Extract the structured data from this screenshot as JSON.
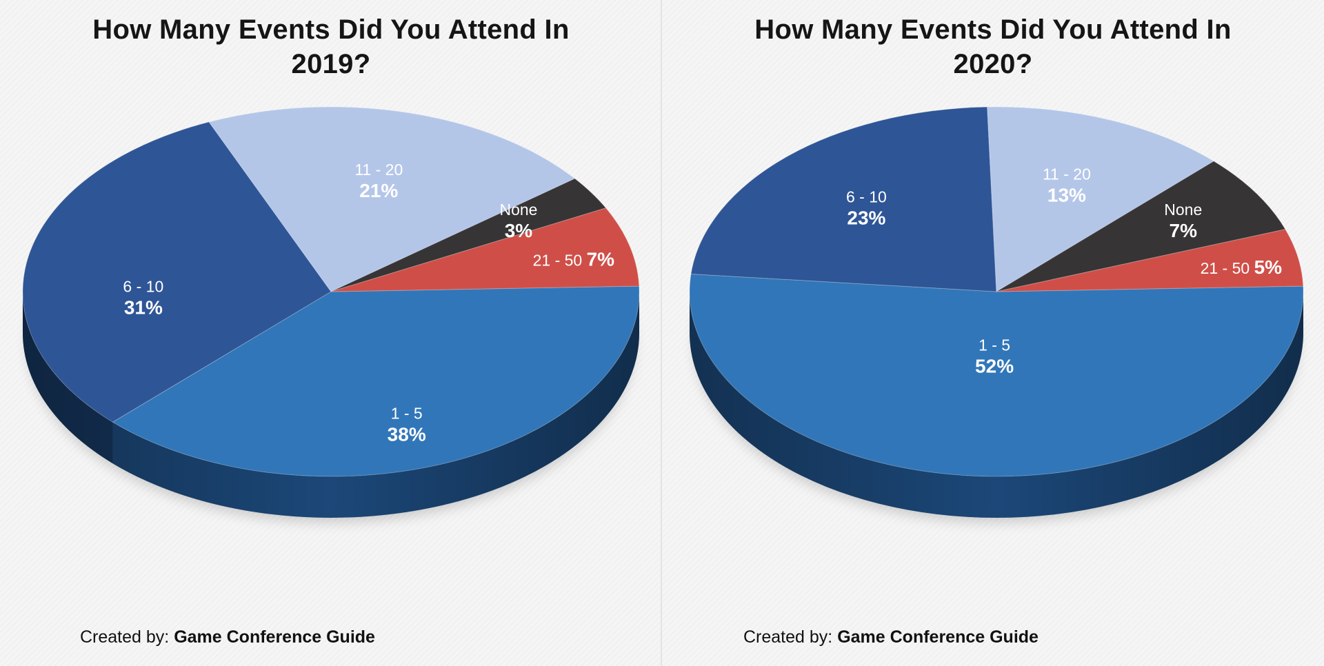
{
  "chart_data": [
    {
      "type": "pie",
      "title_line1": "How Many Events Did You Attend In",
      "title_line2": "2019?",
      "categories": [
        "1 - 5",
        "6 - 10",
        "11 - 20",
        "None",
        "21 - 50"
      ],
      "values": [
        38,
        31,
        21,
        3,
        7
      ],
      "value_labels": [
        "38%",
        "31%",
        "21%",
        "3%",
        "7%"
      ],
      "colors": [
        "#3176b8",
        "#2e5596",
        "#b4c6e8",
        "#363435",
        "#cf4f48"
      ],
      "side_colors": [
        "#1d4b7e",
        "#173963",
        "#8aa0c6",
        "#1e1d1e",
        "#8f2f2b"
      ],
      "legend": "none",
      "credit_prefix": "Created by:",
      "credit_name": "Game Conference Guide"
    },
    {
      "type": "pie",
      "title_line1": "How Many Events Did You Attend In",
      "title_line2": "2020?",
      "categories": [
        "1 - 5",
        "6 - 10",
        "11 - 20",
        "None",
        "21 - 50"
      ],
      "values": [
        52,
        23,
        13,
        7,
        5
      ],
      "value_labels": [
        "52%",
        "23%",
        "13%",
        "7%",
        "5%"
      ],
      "colors": [
        "#3176b8",
        "#2e5596",
        "#b4c6e8",
        "#363435",
        "#cf4f48"
      ],
      "side_colors": [
        "#1d4b7e",
        "#173963",
        "#8aa0c6",
        "#1e1d1e",
        "#8f2f2b"
      ],
      "legend": "none",
      "credit_prefix": "Created by:",
      "credit_name": "Game Conference Guide"
    }
  ]
}
